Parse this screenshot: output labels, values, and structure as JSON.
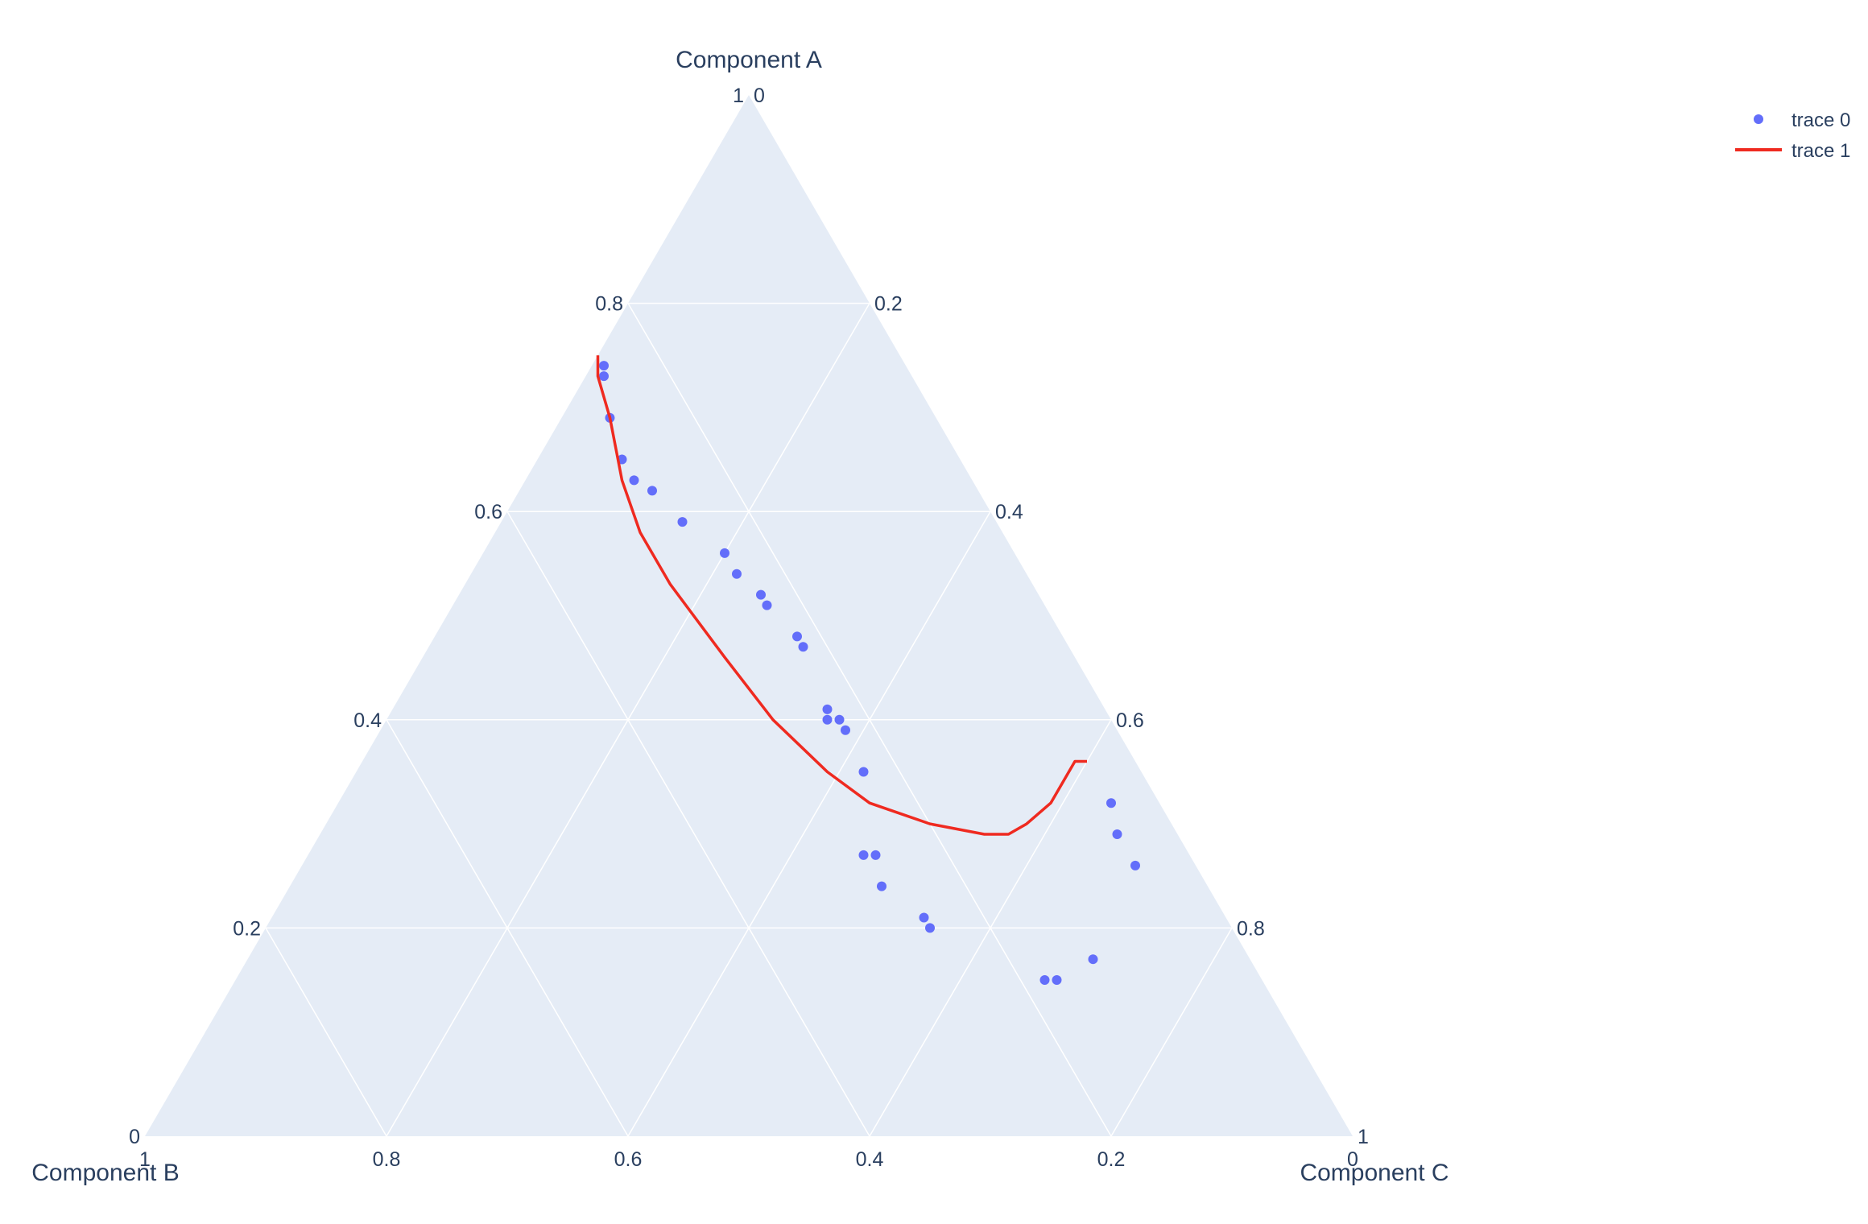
{
  "chart_data": {
    "type": "scatter",
    "subtype": "ternary",
    "axes": {
      "a": {
        "title": "Component A",
        "ticks": [
          "0",
          "0.2",
          "0.4",
          "0.6",
          "0.8",
          "1"
        ]
      },
      "b": {
        "title": "Component B",
        "ticks": [
          "0",
          "0.2",
          "0.4",
          "0.6",
          "0.8",
          "1"
        ]
      },
      "c": {
        "title": "Component C",
        "ticks": [
          "0",
          "0.2",
          "0.4",
          "0.6",
          "0.8",
          "1"
        ]
      }
    },
    "tick_values": [
      0,
      0.2,
      0.4,
      0.6,
      0.8,
      1
    ],
    "grid": true,
    "legend_position": "top-right",
    "colors": {
      "background": "#e5ecf6",
      "grid": "#ffffff",
      "trace0": "#636efa",
      "trace1": "#ef2a20",
      "text": "#2a3f5f"
    },
    "series": [
      {
        "name": "trace 0",
        "mode": "markers",
        "points": [
          {
            "a": 0.74,
            "b": 0.25,
            "c": 0.01
          },
          {
            "a": 0.73,
            "b": 0.255,
            "c": 0.015
          },
          {
            "a": 0.69,
            "b": 0.27,
            "c": 0.04
          },
          {
            "a": 0.65,
            "b": 0.28,
            "c": 0.07
          },
          {
            "a": 0.63,
            "b": 0.28,
            "c": 0.09
          },
          {
            "a": 0.62,
            "b": 0.27,
            "c": 0.11
          },
          {
            "a": 0.59,
            "b": 0.26,
            "c": 0.15
          },
          {
            "a": 0.56,
            "b": 0.24,
            "c": 0.2
          },
          {
            "a": 0.54,
            "b": 0.24,
            "c": 0.22
          },
          {
            "a": 0.52,
            "b": 0.23,
            "c": 0.25
          },
          {
            "a": 0.51,
            "b": 0.23,
            "c": 0.26
          },
          {
            "a": 0.48,
            "b": 0.22,
            "c": 0.3
          },
          {
            "a": 0.47,
            "b": 0.22,
            "c": 0.31
          },
          {
            "a": 0.41,
            "b": 0.23,
            "c": 0.36
          },
          {
            "a": 0.4,
            "b": 0.235,
            "c": 0.365
          },
          {
            "a": 0.4,
            "b": 0.225,
            "c": 0.375
          },
          {
            "a": 0.39,
            "b": 0.225,
            "c": 0.385
          },
          {
            "a": 0.35,
            "b": 0.23,
            "c": 0.42
          },
          {
            "a": 0.32,
            "b": 0.04,
            "c": 0.64
          },
          {
            "a": 0.29,
            "b": 0.05,
            "c": 0.66
          },
          {
            "a": 0.26,
            "b": 0.05,
            "c": 0.69
          },
          {
            "a": 0.27,
            "b": 0.27,
            "c": 0.46
          },
          {
            "a": 0.27,
            "b": 0.26,
            "c": 0.47
          },
          {
            "a": 0.24,
            "b": 0.27,
            "c": 0.49
          },
          {
            "a": 0.21,
            "b": 0.25,
            "c": 0.54
          },
          {
            "a": 0.2,
            "b": 0.25,
            "c": 0.55
          },
          {
            "a": 0.17,
            "b": 0.13,
            "c": 0.7
          },
          {
            "a": 0.15,
            "b": 0.18,
            "c": 0.67
          },
          {
            "a": 0.15,
            "b": 0.17,
            "c": 0.68
          }
        ]
      },
      {
        "name": "trace 1",
        "mode": "lines",
        "points": [
          {
            "a": 0.75,
            "b": 0.25,
            "c": 0.0
          },
          {
            "a": 0.73,
            "b": 0.26,
            "c": 0.01
          },
          {
            "a": 0.69,
            "b": 0.27,
            "c": 0.04
          },
          {
            "a": 0.63,
            "b": 0.29,
            "c": 0.08
          },
          {
            "a": 0.58,
            "b": 0.3,
            "c": 0.12
          },
          {
            "a": 0.53,
            "b": 0.3,
            "c": 0.17
          },
          {
            "a": 0.46,
            "b": 0.29,
            "c": 0.25
          },
          {
            "a": 0.4,
            "b": 0.28,
            "c": 0.32
          },
          {
            "a": 0.35,
            "b": 0.26,
            "c": 0.39
          },
          {
            "a": 0.32,
            "b": 0.24,
            "c": 0.44
          },
          {
            "a": 0.3,
            "b": 0.2,
            "c": 0.5
          },
          {
            "a": 0.29,
            "b": 0.16,
            "c": 0.55
          },
          {
            "a": 0.29,
            "b": 0.14,
            "c": 0.57
          },
          {
            "a": 0.3,
            "b": 0.12,
            "c": 0.58
          },
          {
            "a": 0.32,
            "b": 0.09,
            "c": 0.59
          },
          {
            "a": 0.36,
            "b": 0.05,
            "c": 0.59
          },
          {
            "a": 0.36,
            "b": 0.04,
            "c": 0.6
          }
        ]
      }
    ]
  }
}
